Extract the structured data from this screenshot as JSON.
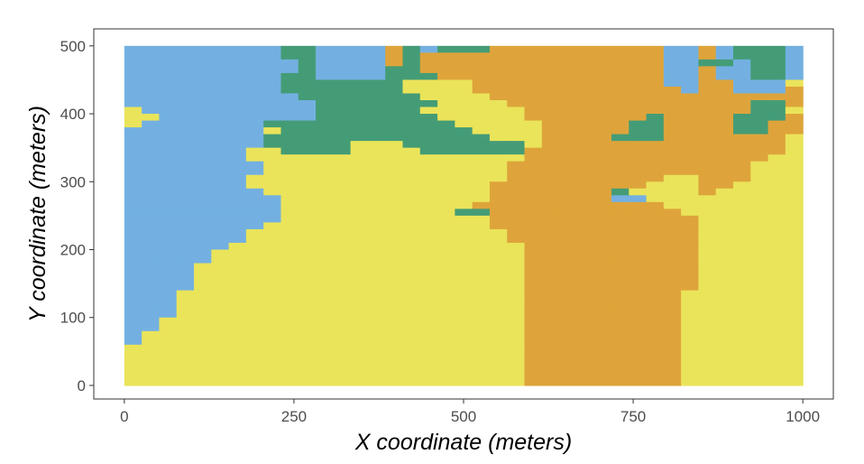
{
  "chart_data": {
    "type": "heatmap",
    "title": "",
    "xlabel": "X coordinate (meters)",
    "ylabel": "Y coordinate (meters)",
    "xlim": [
      -45,
      1045
    ],
    "ylim": [
      -20,
      525
    ],
    "x_ticks": [
      0,
      250,
      500,
      750,
      1000
    ],
    "y_ticks": [
      0,
      100,
      200,
      300,
      400,
      500
    ],
    "x_tick_labels": [
      "0",
      "250",
      "500",
      "750",
      "1000"
    ],
    "y_tick_labels": [
      "0",
      "100",
      "200",
      "300",
      "400",
      "500"
    ],
    "grid": false,
    "legend": "none",
    "cell_size": [
      20,
      20
    ],
    "x_range": [
      0,
      1000
    ],
    "y_range": [
      0,
      500
    ],
    "class_colors": {
      "A": "#73b0e1",
      "G": "#449c76",
      "Y": "#eae45a",
      "O": "#dea43b"
    },
    "rows_top_to_bottom": [
      "AAAAAAAAAGGAAAAOGAGGGOOOOOOOOOOAAOAGGGA",
      "AAAAAAAAAGGAAAAOGOOOOOOOOOOOOOOAAOAGGGA",
      "AAAAAAAAAAGAAAAOGOOOOOOOOOOOOOOAAGGAGGA",
      "AAAAAAAAAAGAAAAGGOOOOOOOOOOOOOOAAOAAGGA",
      "AAAAAAAAAGGAAAAGGGOOOOOOOOOOOOOAAOAAGGA",
      "AAAAAAAAAGGGGGGGYYYYOOOOOOOOOOOAAOOAAAY",
      "AAAAAAAAAGGGGGGGYYYYOOOOOOOOOOOOAOOAAAO",
      "AAAAAAAAAAGGGGGGGYYYYOOOOOOOOOOOOOOOOOO",
      "AAAAAAAAAAAGGGGGGGYYYYOOOOOOOOOOOOOOGGO",
      "YAAAAAAAAAAGGGGGGYYYYYYOOOOOOOOOOOOOGGY",
      "YYAAAAAAAAAGGGGGGGYYYYYOOOOOOOGOOOOGGGO",
      "YAAAAAAAGGGGGGGGGGGYYYYYOOOOOGGOOOOGGOO",
      "AAAAAAAAYGGGGGGGGGGGYYYYOOOOOGGOOOOGGOO",
      "AAAAAAAAGGGGGGGGGGGGGYYYOOOOGGGOOOOOOOY",
      "AAAAAAAAGGGGGYYYGGGGGGGYOOOOOOOOOOOOOOY",
      "AAAAAAAYYGGGGYYYYGGGGGGOOOOOOOOOOOOOOOY",
      "AAAAAAAYYYYYYYYYYYYYYYYOOOOOOOOOOOOOOYY",
      "AAAAAAAAYYYYYYYYYYYYYYOOOOOOOOOOOOOOYYY",
      "AAAAAAAAYYYYYYYYYYYYYYOOOOOOOOOOOOOOYYY",
      "AAAAAAAYYYYYYYYYYYYYYYOOOOOOOOOYYOOOYYY",
      "AAAAAAAYYYYYYYYYYYYYYOOOOOOOOOYYYOOYYYY",
      "AAAAAAAAYYYYYYYYYYYYYOOOOOOOGYYYYOYYYYY",
      "AAAAAAAAAYYYYYYYYYYYYOOOOOOOAAYYYYYYYYY",
      "AAAAAAAAAYYYYYYYYYYYOOOOOOOOOOOYYYYYYYY",
      "AAAAAAAAAYYYYYYYYYYGGOOOOOOOOOOOYYYYYYY",
      "AAAAAAAAAYYYYYYYYYYYYOOOOOOOOOOOOYYYYYY",
      "AAAAAAAAYYYYYYYYYYYYYOOOOOOOOOOOOYYYYYY",
      "AAAAAAAYYYYYYYYYYYYYYYOOOOOOOOOOOYYYYYY",
      "AAAAAAAYYYYYYYYYYYYYYYOOOOOOOOOOOYYYYYY",
      "AAAAAAYYYYYYYYYYYYYYYYYOOOOOOOOOOYYYYYY",
      "AAAAAYYYYYYYYYYYYYYYYYYOOOOOOOOOOYYYYYY",
      "AAAAAYYYYYYYYYYYYYYYYYYOOOOOOOOOOYYYYYY",
      "AAAAYYYYYYYYYYYYYYYYYYYOOOOOOOOOOYYYYYY",
      "AAAAYYYYYYYYYYYYYYYYYYYOOOOOOOOOOYYYYYY",
      "AAAAYYYYYYYYYYYYYYYYYYYOOOOOOOOOOYYYYYY",
      "AAAAYYYYYYYYYYYYYYYYYYYOOOOOOOOOOYYYYYY",
      "AAAYYYYYYYYYYYYYYYYYYYYOOOOOOOOOYYYYYYY",
      "AAAYYYYYYYYYYYYYYYYYYYYOOOOOOOOOYYYYYYY",
      "AAAYYYYYYYYYYYYYYYYYYYYOOOOOOOOOYYYYYYY",
      "AAAYYYYYYYYYYYYYYYYYYYYOOOOOOOOOYYYYYYY",
      "AAYYYYYYYYYYYYYYYYYYYYYOOOOOOOOOYYYYYYY",
      "AAYYYYYYYYYYYYYYYYYYYYYOOOOOOOOOYYYYYYY",
      "AYYYYYYYYYYYYYYYYYYYYYYOOOOOOOOOYYYYYYY",
      "AYYYYYYYYYYYYYYYYYYYYYYOOOOOOOOOYYYYYYY",
      "YYYYYYYYYYYYYYYYYYYYYYYOOOOOOOOOYYYYYYY",
      "YYYYYYYYYYYYYYYYYYYYYYYOOOOOOOOOYYYYYYY",
      "YYYYYYYYYYYYYYYYYYYYYYYOOOOOOOOOYYYYYYY",
      "YYYYYYYYYYYYYYYYYYYYYYYOOOOOOOOOYYYYYYY",
      "YYYYYYYYYYYYYYYYYYYYYYYOOOOOOOOOYYYYYYY",
      "YYYYYYYYYYYYYYYYYYYYYYYOOOOOOOOOYYYYYYY"
    ]
  }
}
